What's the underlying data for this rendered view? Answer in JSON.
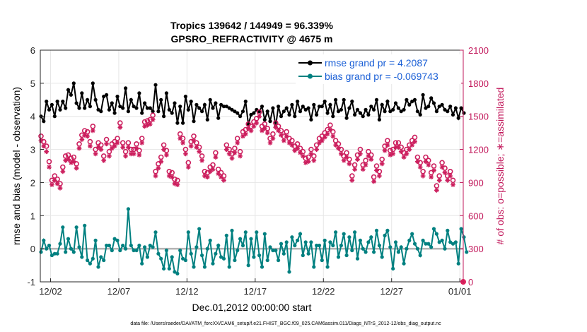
{
  "chart_data": {
    "type": "line",
    "title_line1": "Tropics 139642 / 144949 = 96.339%",
    "title_line2": "GPSRO_REFRACTIVITY @ 4675 m",
    "xlabel": "Dec.01,2012 00:00:00 start",
    "ylabel": "rmse and bias (model - observation)",
    "ylabel_right": "# of obs: o=possible; ∗=assimilated",
    "x_ticks": [
      "12/02",
      "12/07",
      "12/12",
      "12/17",
      "12/22",
      "12/27",
      "01/01"
    ],
    "x_tick_days": [
      1,
      6,
      11,
      16,
      21,
      26,
      31
    ],
    "xlim": [
      0.25,
      31.25
    ],
    "ylim": [
      -1,
      6
    ],
    "y_ticks": [
      "-1",
      "0",
      "1",
      "2",
      "3",
      "4",
      "5",
      "6"
    ],
    "ylim_right": [
      0,
      2100
    ],
    "y_ticks_right": [
      "0",
      "300",
      "600",
      "900",
      "1200",
      "1500",
      "1800",
      "2100"
    ],
    "legend_position": "top-right",
    "series": [
      {
        "name": "rmse grand pr = 4.2087",
        "axis": "left",
        "color": "#000000",
        "values": [
          4.0,
          3.85,
          4.45,
          4.2,
          4.35,
          4.0,
          4.45,
          4.2,
          4.45,
          4.25,
          4.8,
          4.65,
          5.0,
          4.4,
          4.25,
          4.7,
          4.25,
          4.5,
          4.3,
          5.0,
          4.5,
          4.2,
          4.15,
          4.6,
          4.65,
          4.2,
          4.4,
          4.1,
          4.6,
          4.3,
          4.25,
          4.85,
          4.15,
          4.5,
          4.3,
          4.25,
          4.7,
          4.1,
          4.4,
          4.25,
          4.25,
          4.15,
          4.95,
          4.15,
          4.5,
          4.0,
          4.7,
          4.2,
          4.1,
          4.4,
          3.8,
          4.3,
          3.8,
          4.6,
          4.2,
          4.45,
          3.85,
          4.35,
          4.25,
          4.15,
          4.35,
          3.9,
          4.5,
          4.25,
          4.4,
          3.95,
          4.35,
          4.3,
          4.3,
          4.25,
          4.2,
          4.15,
          4.1,
          4.0,
          4.15,
          4.45,
          3.75,
          4.05,
          4.1,
          4.2,
          4.15,
          4.3,
          3.9,
          4.15,
          3.85,
          4.25,
          3.7,
          4.3,
          4.0,
          4.15,
          4.25,
          4.05,
          4.35,
          4.0,
          4.45,
          4.15,
          4.3,
          4.2,
          4.25,
          3.9,
          4.35,
          4.05,
          4.3,
          4.3,
          4.45,
          4.1,
          4.35,
          4.0,
          4.5,
          4.15,
          4.2,
          4.5,
          3.95,
          4.25,
          4.45,
          4.05,
          4.2,
          4.1,
          4.0,
          4.2,
          4.05,
          4.3,
          4.2,
          4.5,
          3.9,
          4.35,
          4.15,
          4.45,
          4.15,
          4.2,
          4.4,
          4.25,
          4.15,
          4.2,
          4.5,
          4.35,
          4.45,
          4.5,
          4.15,
          4.05,
          4.65,
          4.25,
          4.3,
          4.55,
          4.4,
          4.15,
          4.3,
          4.35,
          4.2,
          4.15,
          4.3,
          4.05,
          4.25,
          3.95,
          4.25,
          4.1
        ]
      },
      {
        "name": "bias grand pr = -0.069743",
        "axis": "left",
        "color": "#008080",
        "values": [
          -0.1,
          0.25,
          0.0,
          0.1,
          -0.2,
          -0.15,
          -0.15,
          0.15,
          0.65,
          -0.1,
          0.3,
          0.0,
          -0.1,
          0.65,
          0.05,
          -0.25,
          0.7,
          -0.35,
          -0.45,
          -0.3,
          0.25,
          -0.55,
          -0.25,
          -0.35,
          0.1,
          0.1,
          -0.05,
          0.3,
          0.25,
          -0.05,
          0.1,
          0.0,
          1.2,
          0.1,
          -0.05,
          -0.05,
          0.1,
          -0.45,
          0.05,
          -0.25,
          0.1,
          0.05,
          0.5,
          -0.15,
          -0.3,
          -0.6,
          -0.05,
          -0.6,
          -0.25,
          -0.7,
          -0.75,
          -0.05,
          -0.3,
          -0.35,
          0.5,
          -0.15,
          -0.55,
          0.05,
          0.6,
          -0.2,
          -0.55,
          0.0,
          0.25,
          -0.45,
          -0.15,
          0.1,
          -0.25,
          -0.3,
          0.4,
          -0.55,
          0.55,
          -0.35,
          -0.05,
          0.3,
          0.1,
          0.5,
          -0.5,
          0.3,
          -0.25,
          0.5,
          -0.2,
          -0.55,
          0.45,
          -0.35,
          0.05,
          -0.05,
          -0.05,
          -0.35,
          0.15,
          -0.15,
          0.2,
          -0.7,
          0.35,
          0.1,
          0.25,
          0.45,
          -0.2,
          0.2,
          -0.15,
          0.2,
          -0.55,
          0.1,
          0.1,
          -0.35,
          0.25,
          -0.55,
          0.2,
          0.1,
          0.5,
          -0.25,
          0.1,
          0.45,
          -0.2,
          0.35,
          -0.05,
          0.5,
          -0.3,
          0.25,
          0.0,
          -0.1,
          0.2,
          0.35,
          -0.1,
          0.55,
          0.1,
          -0.25,
          0.4,
          0.55,
          0.05,
          -0.6,
          0.2,
          -0.1,
          0.05,
          -0.45,
          0.0,
          0.25,
          0.45,
          0.15,
          0.0,
          -0.2,
          0.25,
          0.15,
          0.15,
          0.05,
          0.6,
          0.45,
          0.2,
          0.25,
          0.0,
          0.55,
          0.2,
          0.15,
          0.2,
          -0.45,
          0.6,
          0.35,
          -0.1
        ]
      },
      {
        "name": "possible",
        "axis": "right",
        "marker": "o",
        "color": "#cc1f5e",
        "values": [
          1320,
          1270,
          1230,
          1090,
          920,
          960,
          930,
          890,
          1040,
          1140,
          1150,
          1120,
          1130,
          1070,
          1250,
          1330,
          1370,
          1360,
          1270,
          1410,
          1200,
          1260,
          1240,
          1140,
          1290,
          1180,
          1250,
          1270,
          1300,
          1440,
          1260,
          1180,
          1260,
          1200,
          1200,
          1250,
          1190,
          1300,
          1450,
          1460,
          1470,
          1510,
          1000,
          1070,
          1130,
          1240,
          1190,
          1000,
          990,
          930,
          920,
          1340,
          1300,
          1200,
          1080,
          1270,
          1320,
          1260,
          1220,
          1140,
          1000,
          990,
          1040,
          1060,
          1170,
          1020,
          990,
          960,
          1240,
          1200,
          1160,
          1210,
          1300,
          1180,
          1360,
          1380,
          1430,
          1410,
          1450,
          1480,
          1540,
          1410,
          1430,
          1390,
          1300,
          1340,
          1440,
          1410,
          1370,
          1320,
          1360,
          1300,
          1280,
          1230,
          1250,
          1210,
          1180,
          1120,
          1130,
          1200,
          1140,
          1240,
          1300,
          1320,
          1350,
          1380,
          1420,
          1360,
          1280,
          1250,
          1200,
          1140,
          1170,
          1110,
          960,
          1060,
          1150,
          1200,
          1060,
          1100,
          1180,
          1150,
          950,
          1050,
          1000,
          1110,
          1230,
          1280,
          1190,
          1200,
          1260,
          1260,
          1220,
          1170,
          1200,
          1240,
          1280,
          1310,
          1130,
          1080,
          1000,
          1130,
          1100,
          990,
          1050,
          870,
          960,
          1080,
          1030,
          960,
          1000,
          920
        ]
      },
      {
        "name": "assimilated",
        "axis": "right",
        "marker": "*",
        "color": "#cc1f5e",
        "values": [
          1280,
          1230,
          1180,
          1040,
          880,
          920,
          890,
          850,
          1000,
          1100,
          1110,
          1080,
          1090,
          1030,
          1210,
          1290,
          1330,
          1320,
          1230,
          1370,
          1160,
          1220,
          1200,
          1100,
          1250,
          1140,
          1210,
          1230,
          1260,
          1400,
          1220,
          1140,
          1220,
          1160,
          1160,
          1210,
          1150,
          1260,
          1410,
          1420,
          1430,
          1470,
          960,
          1030,
          1090,
          1200,
          1150,
          960,
          950,
          890,
          880,
          1300,
          1260,
          1160,
          1040,
          1230,
          1280,
          1220,
          1180,
          1100,
          960,
          950,
          1000,
          1020,
          1130,
          980,
          950,
          920,
          1200,
          1160,
          1120,
          1170,
          1260,
          1140,
          1320,
          1340,
          1390,
          1370,
          1410,
          1440,
          1500,
          1370,
          1390,
          1350,
          1260,
          1300,
          1400,
          1370,
          1330,
          1280,
          1320,
          1260,
          1240,
          1190,
          1210,
          1170,
          1140,
          1080,
          1090,
          1160,
          1100,
          1200,
          1260,
          1280,
          1310,
          1340,
          1380,
          1320,
          1240,
          1210,
          1160,
          1100,
          1130,
          1070,
          920,
          1020,
          1110,
          1160,
          1020,
          1060,
          1140,
          1110,
          910,
          1010,
          960,
          1070,
          1190,
          1240,
          1150,
          1160,
          1220,
          1220,
          1180,
          1130,
          1160,
          1200,
          1240,
          1270,
          1090,
          1040,
          960,
          1090,
          1060,
          950,
          1010,
          830,
          920,
          1040,
          990,
          920,
          960,
          880
        ]
      }
    ]
  },
  "footer": {
    "data_file": "data file: /Users/raeder/DAI/ATM_forcXX/CAM6_setup/f.e21.FHIST_BGC.f09_025.CAM6assim.011/Diags_NTrS_2012-12/obs_diag_output.nc"
  }
}
